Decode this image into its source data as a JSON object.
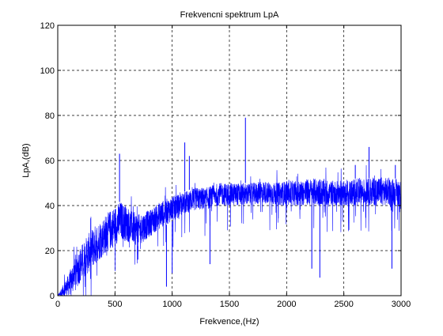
{
  "chart_data": {
    "type": "line",
    "title": "Frekvencni spektrum LpA",
    "xlabel": "Frekvence,(Hz)",
    "ylabel": "LpA,(dB)",
    "xlim": [
      0,
      3000
    ],
    "ylim": [
      0,
      120
    ],
    "x_ticks": [
      "0",
      "500",
      "1000",
      "1500",
      "2000",
      "2500",
      "3000"
    ],
    "y_ticks": [
      "0",
      "20",
      "40",
      "60",
      "80",
      "100",
      "120"
    ],
    "grid": true,
    "line_color": "#0000ff",
    "envelope": {
      "x": [
        0,
        50,
        100,
        150,
        200,
        300,
        400,
        500,
        550,
        600,
        700,
        800,
        900,
        1000,
        1100,
        1200,
        1300,
        1400,
        1500,
        1600,
        1700,
        1800,
        1900,
        2000,
        2100,
        2200,
        2300,
        2400,
        2500,
        2600,
        2700,
        2800,
        2900,
        3000
      ],
      "upper": [
        0,
        5,
        10,
        18,
        22,
        30,
        35,
        40,
        42,
        40,
        36,
        38,
        42,
        44,
        46,
        48,
        48,
        50,
        50,
        50,
        50,
        51,
        50,
        51,
        51,
        52,
        52,
        51,
        51,
        52,
        52,
        53,
        52,
        52
      ],
      "lower": [
        0,
        0,
        0,
        2,
        6,
        12,
        18,
        22,
        25,
        24,
        22,
        26,
        30,
        33,
        36,
        38,
        38,
        40,
        40,
        40,
        40,
        41,
        40,
        40,
        40,
        40,
        40,
        40,
        40,
        40,
        40,
        40,
        40,
        40
      ]
    },
    "peaks": [
      {
        "x": 540,
        "y": 63
      },
      {
        "x": 1110,
        "y": 68
      },
      {
        "x": 1640,
        "y": 79
      },
      {
        "x": 2720,
        "y": 66
      },
      {
        "x": 1150,
        "y": 62
      },
      {
        "x": 2600,
        "y": 58
      },
      {
        "x": 2950,
        "y": 58
      }
    ],
    "dips": [
      {
        "x": 950,
        "y": 4
      },
      {
        "x": 1000,
        "y": 10
      },
      {
        "x": 700,
        "y": 16
      },
      {
        "x": 2220,
        "y": 12
      },
      {
        "x": 2290,
        "y": 8
      },
      {
        "x": 2920,
        "y": 12
      },
      {
        "x": 1330,
        "y": 14
      }
    ]
  }
}
